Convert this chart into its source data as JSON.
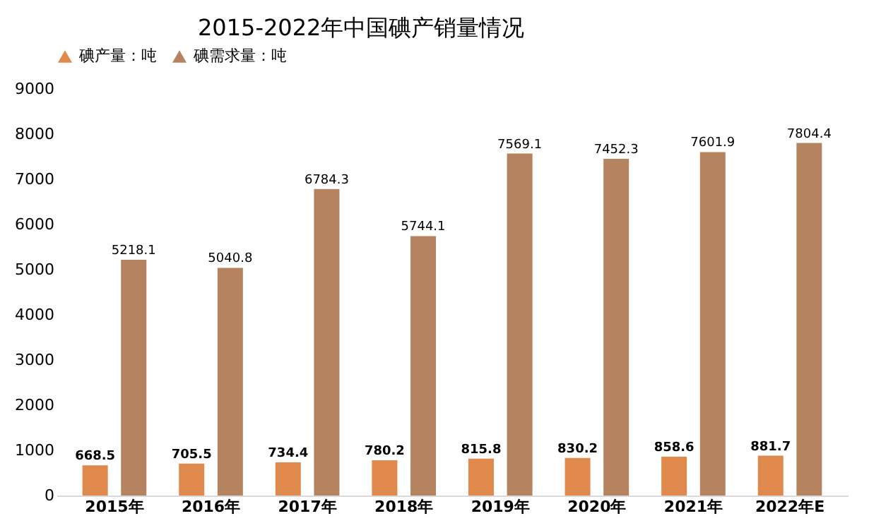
{
  "chart_data": {
    "type": "bar",
    "title": "2015-2022年中国碘产销量情况",
    "categories": [
      "2015年",
      "2016年",
      "2017年",
      "2018年",
      "2019年",
      "2020年",
      "2021年",
      "2022年E"
    ],
    "series": [
      {
        "name": "碘产量：吨",
        "color": "#e0894c",
        "values": [
          668.5,
          705.5,
          734.4,
          780.2,
          815.8,
          830.2,
          858.6,
          881.7
        ]
      },
      {
        "name": "碘需求量：吨",
        "color": "#b5835f",
        "values": [
          5218.1,
          5040.8,
          6784.3,
          5744.1,
          7569.1,
          7452.3,
          7601.9,
          7804.4
        ]
      }
    ],
    "ylim": [
      0,
      9000
    ],
    "yticks": [
      0,
      1000,
      2000,
      3000,
      4000,
      5000,
      6000,
      7000,
      8000,
      9000
    ],
    "grid": false,
    "legend": "top",
    "data_labels": true
  }
}
